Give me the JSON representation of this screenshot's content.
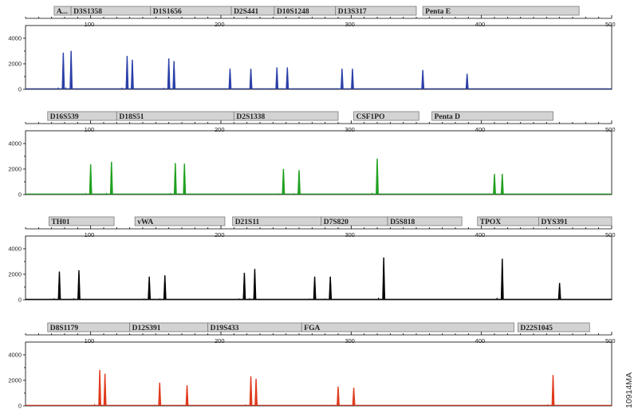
{
  "figure_code": "10914MA",
  "chart_data": [
    {
      "type": "line",
      "channel": "blue",
      "color": "#2b3fa8",
      "xlim": [
        50,
        500
      ],
      "ylim": [
        0,
        5000
      ],
      "x_ticks": [
        100,
        200,
        300,
        400,
        500
      ],
      "y_ticks": [
        0,
        2000,
        4000
      ],
      "markers": [
        {
          "label": "A...",
          "start": 72,
          "end": 85
        },
        {
          "label": "D3S1358",
          "start": 85,
          "end": 146
        },
        {
          "label": "D1S1656",
          "start": 146,
          "end": 208
        },
        {
          "label": "D2S441",
          "start": 208,
          "end": 241
        },
        {
          "label": "D10S1248",
          "start": 241,
          "end": 288
        },
        {
          "label": "D13S317",
          "start": 288,
          "end": 350
        },
        {
          "label": "Penta E",
          "start": 355,
          "end": 475
        }
      ],
      "peaks": [
        {
          "x": 79,
          "h": 2850
        },
        {
          "x": 85,
          "h": 3000
        },
        {
          "x": 128,
          "h": 2600
        },
        {
          "x": 132,
          "h": 2300
        },
        {
          "x": 160,
          "h": 2400
        },
        {
          "x": 164,
          "h": 2200
        },
        {
          "x": 207,
          "h": 1600
        },
        {
          "x": 223,
          "h": 1600
        },
        {
          "x": 243,
          "h": 1700
        },
        {
          "x": 251,
          "h": 1700
        },
        {
          "x": 293,
          "h": 1600
        },
        {
          "x": 301,
          "h": 1600
        },
        {
          "x": 355,
          "h": 1500
        },
        {
          "x": 389,
          "h": 1200
        }
      ]
    },
    {
      "type": "line",
      "channel": "green",
      "color": "#1fa01f",
      "xlim": [
        50,
        500
      ],
      "ylim": [
        0,
        5000
      ],
      "x_ticks": [
        100,
        200,
        300,
        400,
        500
      ],
      "y_ticks": [
        0,
        2000,
        4000
      ],
      "markers": [
        {
          "label": "D16S539",
          "start": 67,
          "end": 120
        },
        {
          "label": "D18S51",
          "start": 120,
          "end": 210
        },
        {
          "label": "D2S1338",
          "start": 210,
          "end": 290
        },
        {
          "label": "CSF1PO",
          "start": 302,
          "end": 352
        },
        {
          "label": "Penta D",
          "start": 362,
          "end": 455
        }
      ],
      "peaks": [
        {
          "x": 100,
          "h": 2350
        },
        {
          "x": 116,
          "h": 2550
        },
        {
          "x": 165,
          "h": 2450
        },
        {
          "x": 172,
          "h": 2400
        },
        {
          "x": 248,
          "h": 2000
        },
        {
          "x": 260,
          "h": 1900
        },
        {
          "x": 320,
          "h": 2800
        },
        {
          "x": 410,
          "h": 1600
        },
        {
          "x": 416,
          "h": 1600
        }
      ]
    },
    {
      "type": "line",
      "channel": "black",
      "color": "#000000",
      "xlim": [
        50,
        500
      ],
      "ylim": [
        0,
        5000
      ],
      "x_ticks": [
        100,
        200,
        300,
        400,
        500
      ],
      "y_ticks": [
        0,
        2000,
        4000
      ],
      "markers": [
        {
          "label": "TH01",
          "start": 68,
          "end": 118
        },
        {
          "label": "vWA",
          "start": 134,
          "end": 203
        },
        {
          "label": "D21S11",
          "start": 209,
          "end": 277
        },
        {
          "label": "D7S820",
          "start": 277,
          "end": 328
        },
        {
          "label": "D5S818",
          "start": 328,
          "end": 385
        },
        {
          "label": "TPOX",
          "start": 397,
          "end": 444
        },
        {
          "label": "DYS391",
          "start": 444,
          "end": 500
        }
      ],
      "peaks": [
        {
          "x": 76,
          "h": 2200
        },
        {
          "x": 91,
          "h": 2300
        },
        {
          "x": 145,
          "h": 1800
        },
        {
          "x": 157,
          "h": 1900
        },
        {
          "x": 218,
          "h": 2100
        },
        {
          "x": 226,
          "h": 2400
        },
        {
          "x": 272,
          "h": 1800
        },
        {
          "x": 284,
          "h": 1800
        },
        {
          "x": 325,
          "h": 3300
        },
        {
          "x": 416,
          "h": 3200
        },
        {
          "x": 460,
          "h": 1300
        }
      ]
    },
    {
      "type": "line",
      "channel": "red",
      "color": "#e03a1c",
      "xlim": [
        50,
        500
      ],
      "ylim": [
        0,
        5000
      ],
      "x_ticks": [
        100,
        200,
        300,
        400,
        500
      ],
      "y_ticks": [
        0,
        2000,
        4000
      ],
      "markers": [
        {
          "label": "D8S1179",
          "start": 67,
          "end": 130
        },
        {
          "label": "D12S391",
          "start": 130,
          "end": 190
        },
        {
          "label": "D19S433",
          "start": 190,
          "end": 262
        },
        {
          "label": "FGA",
          "start": 262,
          "end": 425
        },
        {
          "label": "D22S1045",
          "start": 428,
          "end": 483
        }
      ],
      "peaks": [
        {
          "x": 107,
          "h": 2800
        },
        {
          "x": 111,
          "h": 2500
        },
        {
          "x": 153,
          "h": 1800
        },
        {
          "x": 174,
          "h": 1600
        },
        {
          "x": 223,
          "h": 2300
        },
        {
          "x": 227,
          "h": 2100
        },
        {
          "x": 290,
          "h": 1500
        },
        {
          "x": 302,
          "h": 1400
        },
        {
          "x": 455,
          "h": 2400
        }
      ]
    }
  ]
}
